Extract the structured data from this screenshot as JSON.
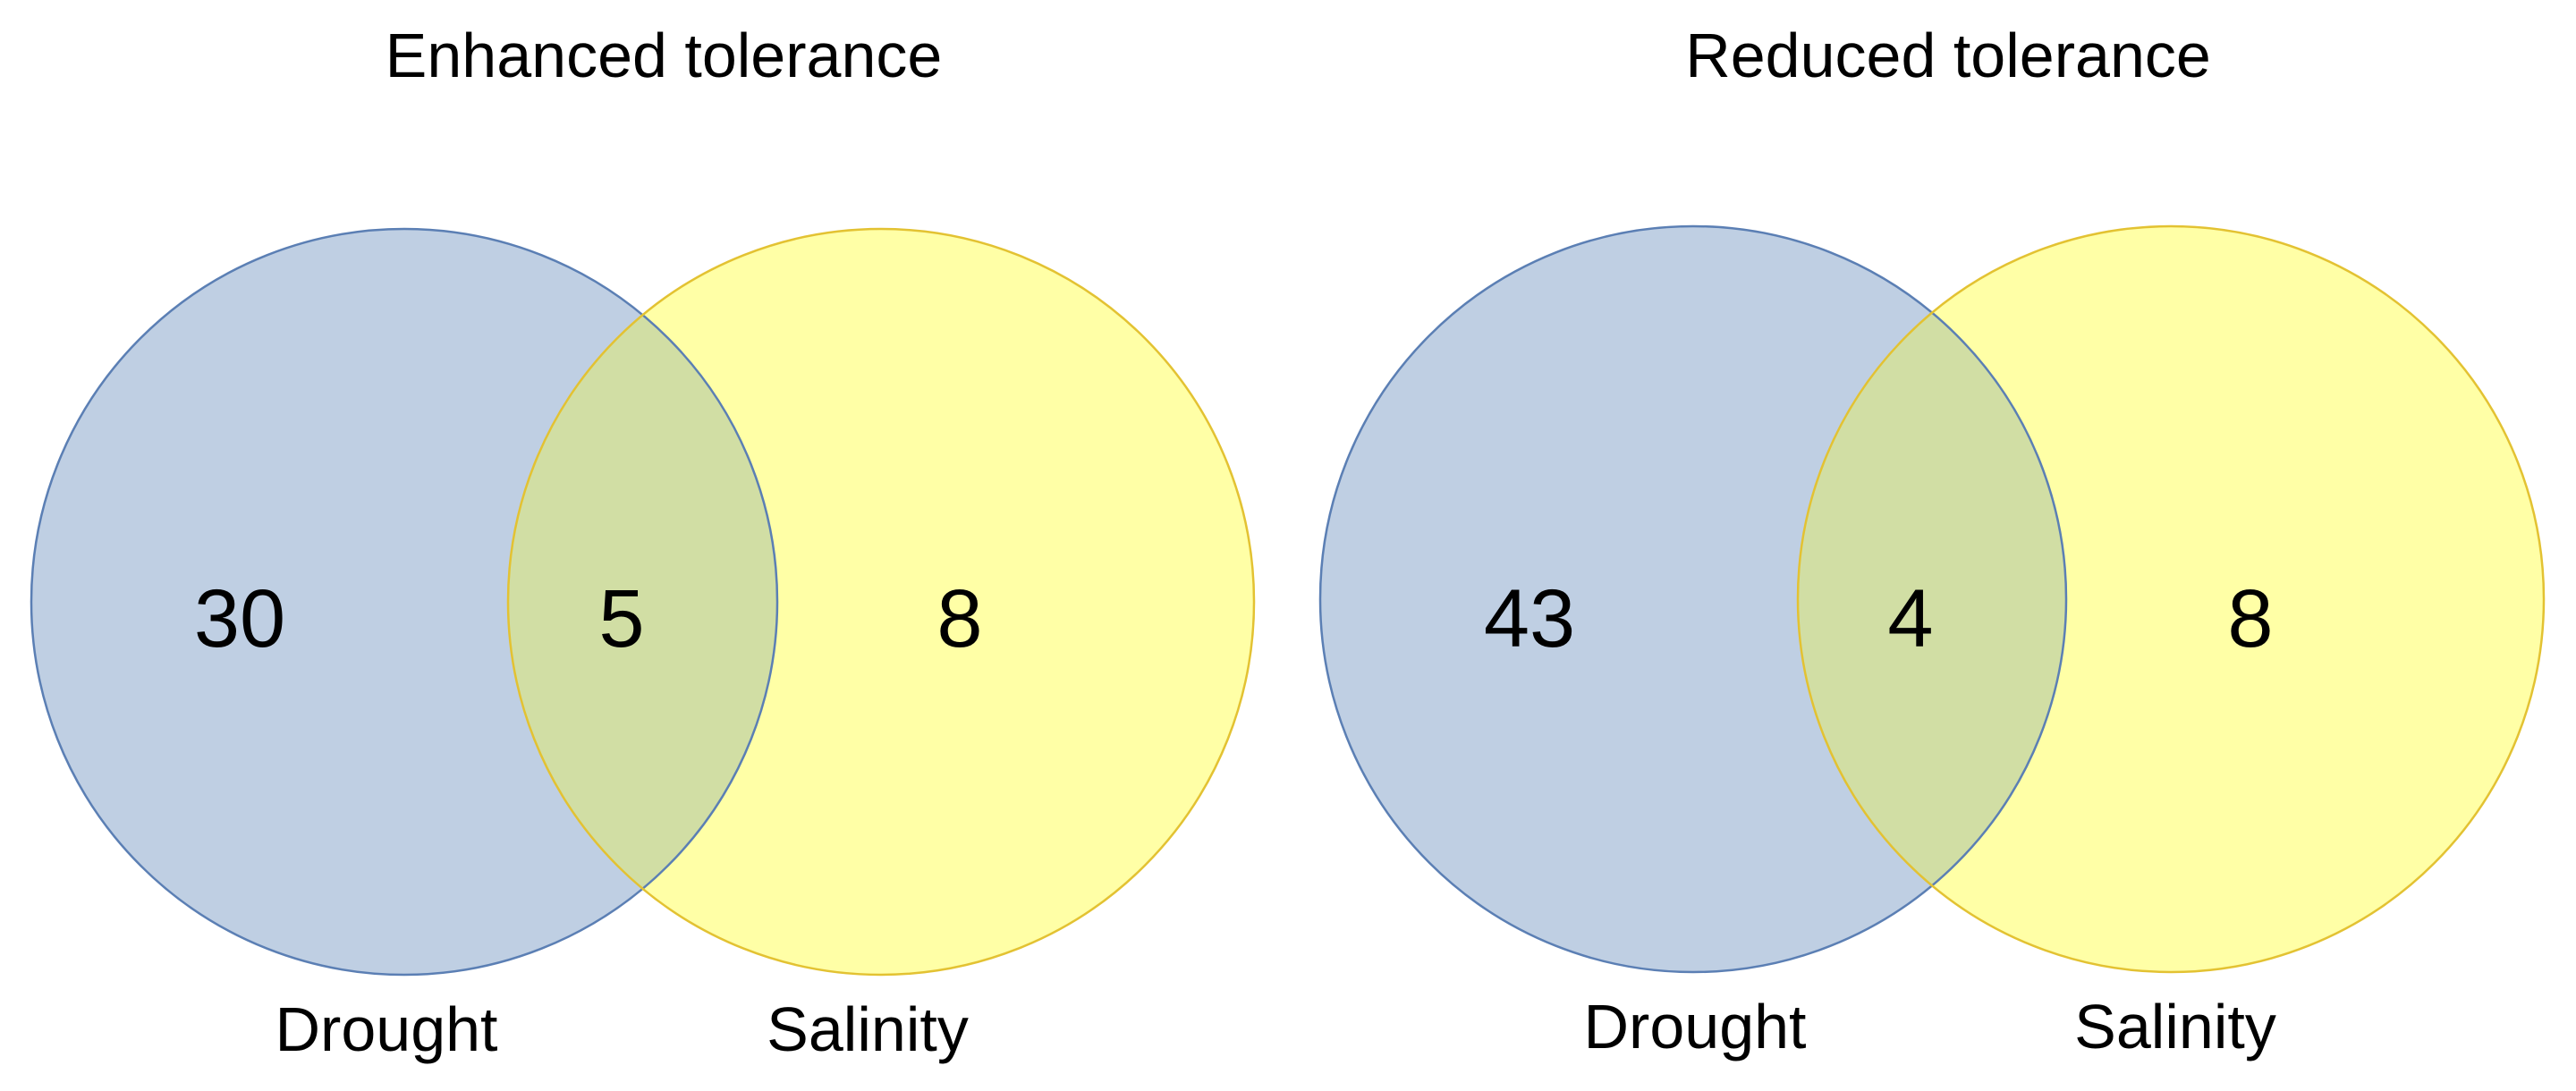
{
  "colors": {
    "drought_fill": "#bfcfe3",
    "drought_stroke": "#5b7fb4",
    "salinity_fill": "#ffffa6",
    "salinity_stroke": "#e3c232",
    "overlap_fill": "#d1dea4"
  },
  "panels": [
    {
      "title": "Enhanced tolerance",
      "left_set_label": "Drought",
      "right_set_label": "Salinity",
      "left_only": "30",
      "both": "5",
      "right_only": "8"
    },
    {
      "title": "Reduced tolerance",
      "left_set_label": "Drought",
      "right_set_label": "Salinity",
      "left_only": "43",
      "both": "4",
      "right_only": "8"
    }
  ]
}
